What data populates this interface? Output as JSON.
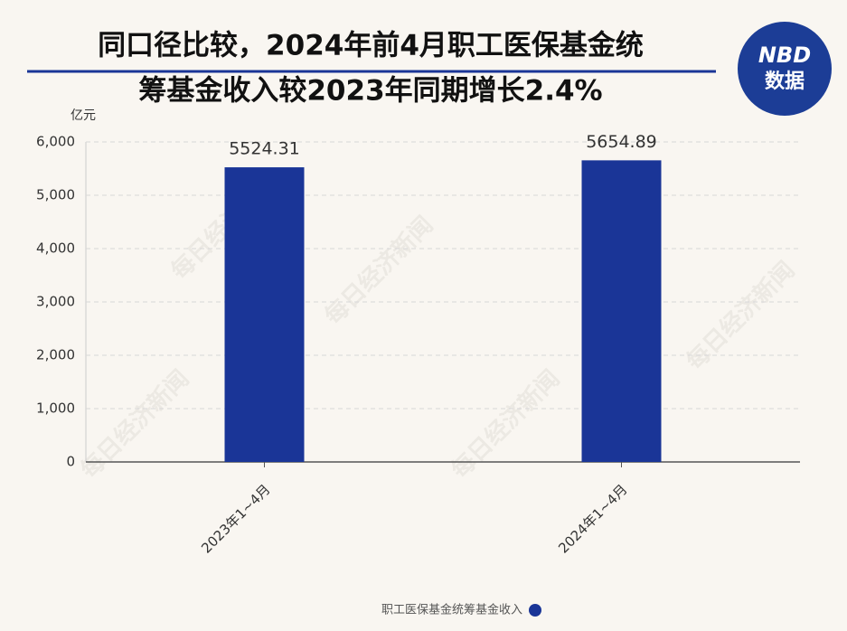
{
  "chart_data": {
    "type": "bar",
    "title": [
      "同口径比较，2024年前4月职工医保基金统",
      "筹基金收入较2023年同期增长2.4%"
    ],
    "y_unit": "亿元",
    "logo": [
      "NBD",
      "数据"
    ],
    "watermark": "每日经济新闻",
    "categories": [
      "2023年1~4月",
      "2024年1~4月"
    ],
    "series": [
      {
        "name": "职工医保基金统筹基金收入",
        "color": "#1a3597",
        "values": [
          5524.31,
          5654.89
        ]
      }
    ],
    "ylim": [
      0,
      6000
    ],
    "yticks": [
      0,
      {
        "value": 1000,
        "label": "1,000"
      },
      {
        "value": 2000,
        "label": "2,000"
      },
      {
        "value": 3000,
        "label": "3,000"
      },
      {
        "value": 4000,
        "label": "4,000"
      },
      {
        "value": 5000,
        "label": "5,000"
      },
      {
        "value": 6000,
        "label": "6,000"
      }
    ],
    "grid": true
  }
}
